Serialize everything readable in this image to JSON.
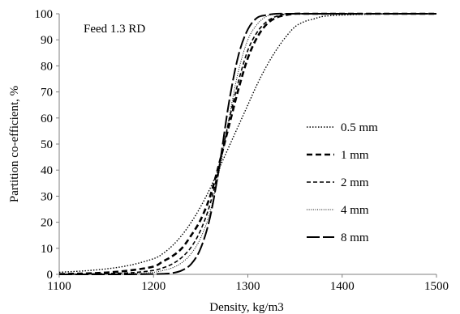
{
  "chart_data": {
    "type": "line",
    "title": "",
    "annotation": "Feed 1.3 RD",
    "xlabel": "Density, kg/m3",
    "ylabel": "Partition co-efficient, %",
    "xlim": [
      1100,
      1500
    ],
    "ylim": [
      0,
      100
    ],
    "xticks": [
      "1100",
      "1200",
      "1300",
      "1400",
      "1500"
    ],
    "yticks": [
      "0",
      "10",
      "20",
      "30",
      "40",
      "50",
      "60",
      "70",
      "80",
      "90",
      "100"
    ],
    "grid": false,
    "legend_position": "right",
    "x": [
      1100,
      1125,
      1150,
      1175,
      1200,
      1210,
      1220,
      1230,
      1240,
      1250,
      1260,
      1270,
      1280,
      1290,
      1300,
      1310,
      1320,
      1330,
      1340,
      1350,
      1360,
      1370,
      1380,
      1400,
      1450,
      1500
    ],
    "series": [
      {
        "name": "0.5 mm",
        "dash": "dotted",
        "color": "#000000",
        "values": [
          0.8,
          1.3,
          2.1,
          3.5,
          6,
          8,
          11,
          15,
          20,
          26,
          33,
          41,
          49,
          57,
          65,
          73,
          80,
          86,
          91,
          95,
          97,
          98,
          99,
          99.5,
          100,
          100
        ]
      },
      {
        "name": "1 mm",
        "dash": "dash-bold",
        "color": "#000000",
        "values": [
          0.1,
          0.3,
          0.7,
          1.5,
          3,
          5,
          7,
          10,
          15,
          21,
          30,
          43,
          57,
          71,
          83,
          91,
          96,
          98.5,
          99.5,
          100,
          100,
          100,
          100,
          100,
          100,
          100
        ]
      },
      {
        "name": "2 mm",
        "dash": "dash",
        "color": "#000000",
        "values": [
          0,
          0.1,
          0.3,
          0.6,
          1.5,
          2.5,
          4,
          6.5,
          10.5,
          17,
          27,
          42,
          59,
          74,
          86,
          93,
          97,
          99,
          99.8,
          100,
          100,
          100,
          100,
          100,
          100,
          100
        ]
      },
      {
        "name": "4 mm",
        "dash": "fine-dotted",
        "color": "#000000",
        "values": [
          0,
          0,
          0.1,
          0.3,
          0.8,
          1.5,
          2.5,
          4.5,
          8,
          14,
          24,
          40,
          60,
          78,
          90,
          96,
          99,
          99.8,
          100,
          100,
          100,
          100,
          100,
          100,
          100,
          100
        ]
      },
      {
        "name": "8 mm",
        "dash": "long-dash",
        "color": "#000000",
        "values": [
          0,
          0,
          0,
          0,
          0.1,
          0.2,
          0.5,
          1.5,
          4,
          10,
          22,
          42,
          66,
          84,
          94,
          98.5,
          99.5,
          100,
          100,
          100,
          100,
          100,
          100,
          100,
          100,
          100
        ]
      }
    ]
  }
}
